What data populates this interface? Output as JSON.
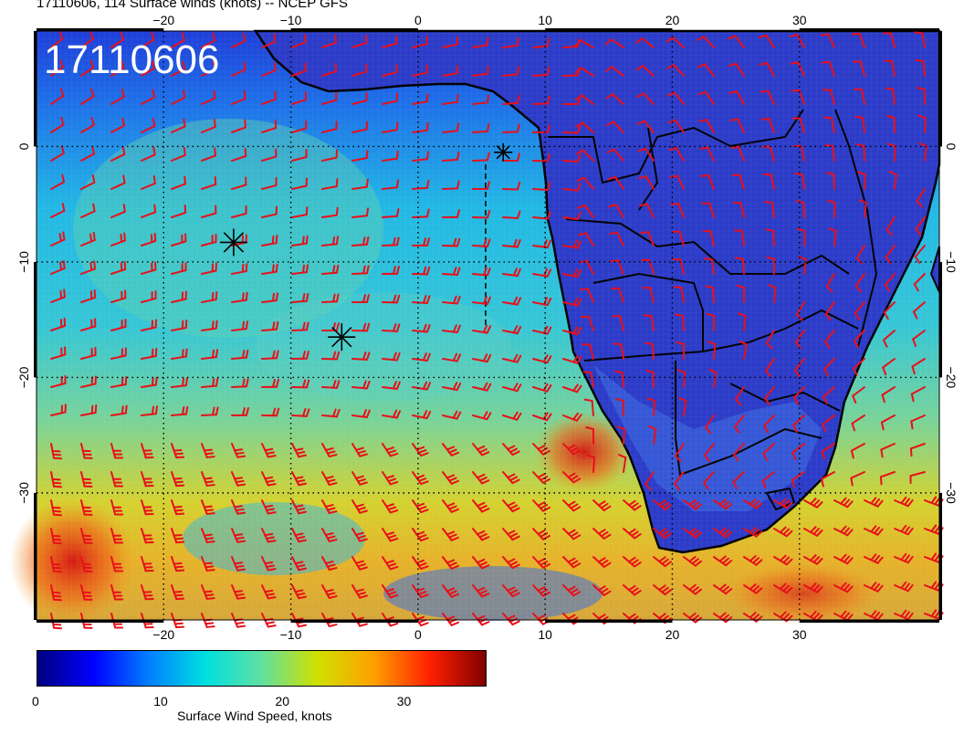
{
  "header": {
    "title": "17110606, 114 Surface winds (knots) -- NCEP GFS",
    "stamp": "17110606"
  },
  "map": {
    "projection": "cylindrical equidistant",
    "lon_range": [
      -30,
      41
    ],
    "lat_range": [
      -41,
      10
    ],
    "lon_ticks": [
      "-20",
      "-10",
      "0",
      "10",
      "20",
      "30"
    ],
    "lat_ticks": [
      "0",
      "-10",
      "-20",
      "-30"
    ],
    "gridlines": "dotted",
    "field": "Surface Wind Speed",
    "overlay": "wind barbs",
    "barb_color": "#e8101a",
    "coast_color": "#000000",
    "markers": [
      {
        "name": "asterisk-marker-1",
        "lon": -14.5,
        "lat": -8.3
      },
      {
        "name": "asterisk-marker-2",
        "lon": -6,
        "lat": -16.5
      },
      {
        "name": "asterisk-marker-3",
        "lon": 6.7,
        "lat": -0.5
      }
    ]
  },
  "colorbar": {
    "label": "Surface Wind Speed, knots",
    "ticks": [
      "0",
      "10",
      "20",
      "30"
    ],
    "range": [
      0,
      37
    ],
    "colors": [
      "#00007f",
      "#0000ff",
      "#0080ff",
      "#00e0e0",
      "#60e0a0",
      "#d0e000",
      "#ffa000",
      "#ff2000",
      "#800000"
    ]
  }
}
